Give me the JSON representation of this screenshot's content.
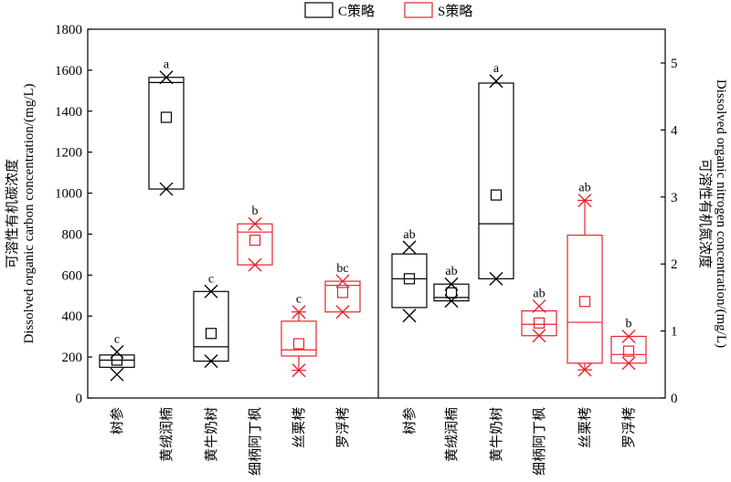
{
  "legend": {
    "c_label": "C策略",
    "s_label": "S策略",
    "c_color": "#000000",
    "s_color": "#e8232a"
  },
  "left_axis": {
    "label_cn": "可溶性有机碳浓度",
    "label_en": "Dissolved organic carbon concentration/(mg/L)",
    "ticks": [
      "0",
      "200",
      "400",
      "600",
      "800",
      "1000",
      "1200",
      "1400",
      "1600",
      "1800"
    ]
  },
  "right_axis": {
    "label_cn": "可溶性有机氮浓度",
    "label_en": "Dissolved organic nitrogen concentration/(mg/L)",
    "ticks": [
      "0",
      "1",
      "2",
      "3",
      "4",
      "5"
    ]
  },
  "chart_data": [
    {
      "type": "box",
      "ylabel": "可溶性有机碳浓度 Dissolved organic carbon concentration/(mg/L)",
      "ylim": [
        0,
        1800
      ],
      "grid": false,
      "legend_position": "top",
      "categories": [
        "树参",
        "黄绒润楠",
        "黄牛奶树",
        "细柄阿丁枫",
        "丝栗栲",
        "罗浮栲"
      ],
      "strategy": [
        "C",
        "C",
        "C",
        "S",
        "S",
        "S"
      ],
      "boxes": [
        {
          "q1": 150,
          "median": 185,
          "q3": 210,
          "mean": 185,
          "min_marker": 115,
          "max_marker": 225,
          "letter": "c"
        },
        {
          "q1": 1020,
          "median": 1540,
          "q3": 1565,
          "mean": 1370,
          "min_marker": 1020,
          "max_marker": 1565,
          "letter": "a"
        },
        {
          "q1": 180,
          "median": 250,
          "q3": 520,
          "mean": 315,
          "min_marker": 180,
          "max_marker": 520,
          "letter": "c"
        },
        {
          "q1": 650,
          "median": 810,
          "q3": 850,
          "mean": 770,
          "min_marker": 650,
          "max_marker": 850,
          "letter": "b"
        },
        {
          "q1": 205,
          "median": 235,
          "q3": 375,
          "mean": 265,
          "whisker_low": 135,
          "whisker_high": 420,
          "min_marker": 135,
          "max_marker": 420,
          "letter": "c"
        },
        {
          "q1": 420,
          "median": 550,
          "q3": 570,
          "mean": 515,
          "min_marker": 420,
          "max_marker": 570,
          "letter": "bc"
        }
      ]
    },
    {
      "type": "box",
      "ylabel": "可溶性有机氮浓度 Dissolved organic nitrogen concentration/(mg/L)",
      "ylim": [
        0,
        5.5
      ],
      "grid": false,
      "categories": [
        "树参",
        "黄绒润楠",
        "黄牛奶树",
        "细柄阿丁枫",
        "丝栗栲",
        "罗浮栲"
      ],
      "strategy": [
        "C",
        "C",
        "C",
        "S",
        "S",
        "S"
      ],
      "boxes": [
        {
          "q1": 1.35,
          "median": 1.78,
          "q3": 2.15,
          "mean": 1.78,
          "min_marker": 1.23,
          "max_marker": 2.25,
          "letter": "ab"
        },
        {
          "q1": 1.45,
          "median": 1.5,
          "q3": 1.7,
          "mean": 1.57,
          "min_marker": 1.45,
          "max_marker": 1.7,
          "letter": "ab"
        },
        {
          "q1": 1.78,
          "median": 2.6,
          "q3": 4.7,
          "mean": 3.03,
          "min_marker": 1.78,
          "max_marker": 4.73,
          "letter": "a"
        },
        {
          "q1": 0.93,
          "median": 1.1,
          "q3": 1.3,
          "mean": 1.12,
          "min_marker": 0.93,
          "max_marker": 1.37,
          "letter": "ab"
        },
        {
          "q1": 0.52,
          "median": 1.13,
          "q3": 2.43,
          "mean": 1.44,
          "whisker_low": 0.42,
          "whisker_high": 2.95,
          "min_marker": 0.42,
          "max_marker": 2.95,
          "letter": "ab"
        },
        {
          "q1": 0.52,
          "median": 0.65,
          "q3": 0.92,
          "mean": 0.7,
          "min_marker": 0.52,
          "max_marker": 0.92,
          "letter": "b"
        }
      ]
    }
  ]
}
